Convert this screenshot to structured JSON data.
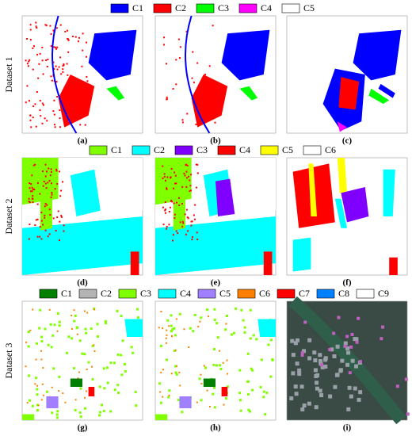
{
  "rows": [
    {
      "label": "Dataset 1",
      "legend": [
        {
          "name": "C1",
          "color": "#0000ff"
        },
        {
          "name": "C2",
          "color": "#ff0000"
        },
        {
          "name": "C3",
          "color": "#00ff00"
        },
        {
          "name": "C4",
          "color": "#ff00ff"
        },
        {
          "name": "C5",
          "color": "#ffffff"
        }
      ],
      "panels": [
        {
          "label": "(a)"
        },
        {
          "label": "(b)"
        },
        {
          "label": "(c)"
        }
      ]
    },
    {
      "label": "Dataset 2",
      "legend": [
        {
          "name": "C1",
          "color": "#80ff00"
        },
        {
          "name": "C2",
          "color": "#00ffff"
        },
        {
          "name": "C3",
          "color": "#8000ff"
        },
        {
          "name": "C4",
          "color": "#ff0000"
        },
        {
          "name": "C5",
          "color": "#ffff00"
        },
        {
          "name": "C6",
          "color": "#ffffff"
        }
      ],
      "panels": [
        {
          "label": "(d)"
        },
        {
          "label": "(e)"
        },
        {
          "label": "(f)"
        }
      ]
    },
    {
      "label": "Dataset 3",
      "legend": [
        {
          "name": "C1",
          "color": "#007f00"
        },
        {
          "name": "C2",
          "color": "#b4b4b4"
        },
        {
          "name": "C3",
          "color": "#80ff00"
        },
        {
          "name": "C4",
          "color": "#00ffff"
        },
        {
          "name": "C5",
          "color": "#a080ff"
        },
        {
          "name": "C6",
          "color": "#ff8000"
        },
        {
          "name": "C7",
          "color": "#ff0000"
        },
        {
          "name": "C8",
          "color": "#0080ff"
        },
        {
          "name": "C9",
          "color": "#ffffff"
        }
      ],
      "panels": [
        {
          "label": "(g)"
        },
        {
          "label": "(h)"
        },
        {
          "label": "(i)"
        }
      ]
    }
  ]
}
